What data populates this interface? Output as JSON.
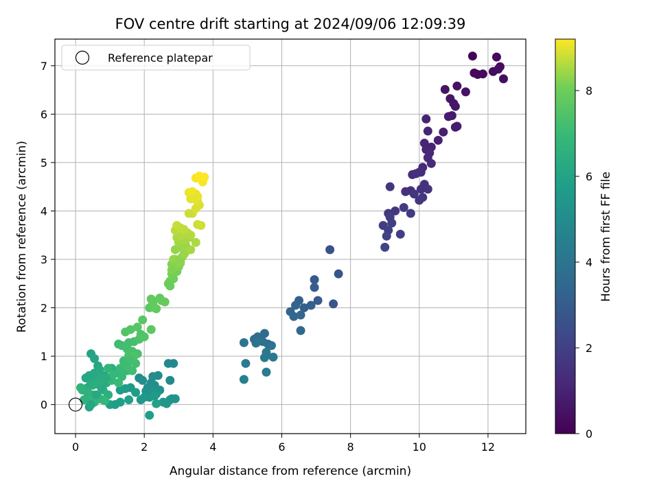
{
  "chart_data": {
    "type": "scatter",
    "title": "FOV centre drift starting at 2024/09/06 12:09:39",
    "xlabel": "Angular distance from reference (arcmin)",
    "ylabel": "Rotation from reference (arcmin)",
    "xlim": [
      -0.6,
      13.1
    ],
    "ylim": [
      -0.6,
      7.55
    ],
    "xticks": [
      0,
      2,
      4,
      6,
      8,
      10,
      12
    ],
    "yticks": [
      0,
      1,
      2,
      3,
      4,
      5,
      6,
      7
    ],
    "grid": true,
    "legend": {
      "placement": "top-left",
      "entries": [
        "Reference platepar"
      ]
    },
    "reference_point": {
      "x": 0,
      "y": 0,
      "label": "Reference platepar"
    },
    "colorbar": {
      "label": "Hours from first FF file",
      "colormap": "viridis",
      "range": [
        0,
        9.2
      ],
      "ticks": [
        0,
        2,
        4,
        6,
        8
      ]
    },
    "series": [
      {
        "x": [
          11.55,
          11.6,
          11.7,
          11.85,
          12.15,
          12.25,
          12.35,
          12.3,
          12.45,
          11.1,
          11.35,
          10.75,
          10.9,
          11.0,
          11.05,
          10.95
        ],
        "y": [
          7.2,
          6.85,
          6.82,
          6.83,
          6.88,
          7.18,
          6.98,
          6.93,
          6.73,
          6.58,
          6.46,
          6.51,
          6.32,
          6.22,
          6.16,
          5.97
        ],
        "hours": [
          0.1,
          0.2,
          0.2,
          0.25,
          0.3,
          0.3,
          0.35,
          0.4,
          0.4,
          0.5,
          0.5,
          0.55,
          0.6,
          0.6,
          0.65,
          0.7
        ]
      },
      {
        "x": [
          11.05,
          11.1,
          10.85,
          10.7,
          10.55,
          10.35,
          10.2,
          10.25,
          10.15,
          10.2,
          10.3,
          10.25,
          10.1,
          10.35,
          10.05
        ],
        "y": [
          5.73,
          5.75,
          5.95,
          5.63,
          5.46,
          5.32,
          5.9,
          5.65,
          5.4,
          5.27,
          5.2,
          5.1,
          4.9,
          4.98,
          4.8
        ],
        "hours": [
          0.75,
          0.8,
          0.8,
          0.9,
          0.95,
          1.0,
          1.0,
          1.05,
          1.1,
          1.1,
          1.15,
          1.2,
          1.2,
          1.25,
          1.3
        ]
      },
      {
        "x": [
          9.8,
          9.9,
          10.0,
          9.6,
          9.75,
          10.05,
          10.15,
          10.25,
          9.85,
          10.0,
          10.1,
          9.15,
          9.3,
          9.1,
          9.55,
          9.75,
          9.15,
          9.2,
          8.95,
          9.45,
          9.1,
          9.05,
          9.0
        ],
        "y": [
          4.75,
          4.77,
          4.8,
          4.4,
          4.42,
          4.45,
          4.55,
          4.45,
          4.35,
          4.22,
          4.28,
          4.5,
          4.0,
          3.95,
          4.07,
          3.95,
          3.87,
          3.75,
          3.7,
          3.52,
          3.6,
          3.48,
          3.25
        ],
        "hours": [
          1.3,
          1.35,
          1.4,
          1.4,
          1.45,
          1.5,
          1.5,
          1.55,
          1.6,
          1.6,
          1.65,
          1.7,
          1.7,
          1.75,
          1.8,
          1.8,
          1.85,
          1.9,
          1.95,
          2.0,
          2.0,
          2.05,
          2.1
        ]
      },
      {
        "x": [
          7.4,
          7.65,
          7.5,
          6.95,
          6.95,
          7.05,
          6.85,
          6.65,
          6.5,
          6.4,
          6.25,
          6.35,
          6.55,
          6.55
        ],
        "y": [
          3.2,
          2.7,
          2.08,
          2.58,
          2.42,
          2.15,
          2.05,
          2.0,
          2.15,
          2.05,
          1.92,
          1.82,
          1.85,
          1.53
        ],
        "hours": [
          2.6,
          2.7,
          2.8,
          2.9,
          3.0,
          3.0,
          3.1,
          3.15,
          3.2,
          3.3,
          3.3,
          3.4,
          3.45,
          3.5
        ]
      },
      {
        "x": [
          5.5,
          5.3,
          5.2,
          5.45,
          5.6,
          5.7,
          5.25,
          5.3,
          4.9,
          5.55,
          5.75,
          5.5,
          4.95,
          5.55,
          4.9
        ],
        "y": [
          1.47,
          1.4,
          1.35,
          1.3,
          1.25,
          1.22,
          1.27,
          1.3,
          1.28,
          1.08,
          0.98,
          0.97,
          0.85,
          0.67,
          0.52
        ],
        "hours": [
          3.6,
          3.65,
          3.7,
          3.8,
          3.85,
          3.9,
          3.9,
          4.0,
          4.05,
          4.1,
          4.2,
          4.25,
          4.3,
          4.4,
          4.5
        ]
      },
      {
        "x": [
          2.7,
          2.85,
          2.75,
          2.4,
          2.2,
          2.25,
          1.85,
          1.95,
          2.3,
          2.1,
          2.05,
          2.45,
          2.8,
          2.75,
          2.9,
          2.35,
          2.15,
          2.25,
          2.55,
          2.65,
          1.9,
          2.0,
          2.3,
          1.6,
          1.45,
          1.75,
          1.3,
          2.15,
          1.3,
          1.15,
          1.0,
          1.55,
          2.35
        ],
        "y": [
          0.85,
          0.85,
          0.5,
          0.6,
          0.45,
          0.58,
          0.55,
          0.5,
          0.4,
          0.35,
          0.28,
          0.3,
          0.12,
          0.1,
          0.12,
          0.22,
          0.15,
          0.25,
          0.05,
          0.02,
          0.1,
          0.15,
          0.18,
          0.35,
          0.33,
          0.25,
          0.3,
          -0.22,
          0.05,
          0.0,
          0.0,
          0.1,
          0.02
        ],
        "hours": [
          4.8,
          4.85,
          4.9,
          4.95,
          5.0,
          5.0,
          5.05,
          5.1,
          5.1,
          5.15,
          5.2,
          5.2,
          5.25,
          5.3,
          5.3,
          5.35,
          5.4,
          5.4,
          5.45,
          5.5,
          5.5,
          5.55,
          5.6,
          5.6,
          5.65,
          5.7,
          5.7,
          5.75,
          5.8,
          5.8,
          5.85,
          5.9,
          5.9
        ]
      },
      {
        "x": [
          0.45,
          0.55,
          0.65,
          0.3,
          0.4,
          0.55,
          0.7,
          0.85,
          0.45,
          0.6,
          0.75,
          0.9,
          0.35,
          0.5,
          0.65,
          0.8,
          0.95,
          0.2,
          0.35,
          0.5,
          0.65,
          0.8,
          0.45,
          0.55,
          0.7,
          0.85,
          1.05,
          1.2,
          1.35,
          1.5,
          0.4,
          0.45,
          0.6,
          0.75,
          0.9,
          1.05,
          0.25,
          0.15,
          0.95,
          1.1,
          1.25
        ],
        "y": [
          1.05,
          0.95,
          0.8,
          0.55,
          0.6,
          0.65,
          0.72,
          0.6,
          0.45,
          0.5,
          0.55,
          0.45,
          0.35,
          0.4,
          0.42,
          0.3,
          0.2,
          0.3,
          0.25,
          0.2,
          0.15,
          0.1,
          0.1,
          0.05,
          0.12,
          0.08,
          0.5,
          0.65,
          0.58,
          0.7,
          -0.05,
          0.0,
          0.2,
          0.35,
          0.55,
          0.75,
          0.1,
          0.35,
          0.75,
          0.62,
          0.45
        ],
        "hours": [
          6.0,
          6.05,
          6.1,
          6.1,
          6.15,
          6.2,
          6.2,
          6.25,
          6.3,
          6.3,
          6.35,
          6.4,
          6.4,
          6.45,
          6.5,
          6.5,
          6.55,
          6.6,
          6.6,
          6.65,
          6.7,
          6.7,
          6.75,
          6.8,
          6.8,
          6.85,
          6.9,
          6.9,
          6.95,
          7.0,
          6.0,
          6.1,
          6.2,
          6.3,
          6.4,
          6.5,
          6.6,
          6.7,
          6.8,
          6.9,
          7.0
        ]
      },
      {
        "x": [
          1.25,
          1.35,
          1.55,
          1.7,
          1.5,
          1.65,
          1.8,
          1.55,
          1.7,
          1.85,
          1.9,
          2.0,
          1.4,
          1.6,
          1.75,
          1.3,
          1.5,
          1.65,
          1.45,
          1.6,
          1.8,
          1.95,
          2.15,
          2.25,
          2.45,
          2.3,
          2.5,
          2.6,
          2.2,
          2.35,
          2.2
        ],
        "y": [
          1.25,
          1.22,
          1.28,
          1.3,
          1.15,
          1.1,
          1.05,
          1.02,
          1.0,
          1.35,
          1.45,
          1.4,
          0.9,
          0.92,
          0.85,
          0.75,
          0.8,
          0.7,
          1.5,
          1.55,
          1.6,
          1.75,
          2.0,
          2.1,
          2.2,
          2.0,
          2.15,
          2.12,
          2.18,
          1.98,
          1.55
        ],
        "hours": [
          7.1,
          7.15,
          7.2,
          7.2,
          7.25,
          7.3,
          7.3,
          7.35,
          7.4,
          7.4,
          7.45,
          7.5,
          7.1,
          7.2,
          7.25,
          7.0,
          7.1,
          7.15,
          7.5,
          7.55,
          7.6,
          7.65,
          7.7,
          7.75,
          7.8,
          7.75,
          7.85,
          7.9,
          7.8,
          7.85,
          7.7
        ]
      },
      {
        "x": [
          2.75,
          2.85,
          2.8,
          2.95,
          3.0,
          3.05,
          2.8,
          2.9,
          3.1,
          3.15,
          2.9,
          3.05,
          3.2,
          3.0,
          3.15,
          3.3,
          2.95,
          3.1,
          3.25,
          2.9,
          3.05,
          3.35,
          3.5,
          3.2,
          3.35,
          2.85,
          3.0,
          3.15,
          2.9,
          3.05,
          2.8,
          2.7,
          2.75
        ],
        "y": [
          2.55,
          2.6,
          2.7,
          2.75,
          2.85,
          2.95,
          2.9,
          3.0,
          3.05,
          3.1,
          3.2,
          3.25,
          3.3,
          3.35,
          3.4,
          3.45,
          3.45,
          3.5,
          3.55,
          3.6,
          3.65,
          3.5,
          3.35,
          3.15,
          3.2,
          3.0,
          2.95,
          3.1,
          2.85,
          2.92,
          2.78,
          2.5,
          2.45
        ],
        "hours": [
          8.0,
          8.05,
          8.1,
          8.1,
          8.15,
          8.2,
          8.2,
          8.25,
          8.3,
          8.3,
          8.35,
          8.4,
          8.4,
          8.45,
          8.5,
          8.5,
          8.55,
          8.6,
          8.6,
          8.65,
          8.7,
          8.6,
          8.55,
          8.45,
          8.5,
          8.35,
          8.3,
          8.4,
          8.25,
          8.3,
          8.2,
          8.0,
          7.95
        ]
      },
      {
        "x": [
          2.95,
          3.15,
          3.55,
          3.4,
          3.5,
          3.6,
          3.55,
          3.35,
          3.45,
          3.5,
          3.3,
          3.4,
          3.55,
          3.45,
          3.65,
          3.7,
          3.75,
          3.5,
          3.6,
          3.3
        ],
        "y": [
          3.7,
          3.62,
          3.72,
          3.95,
          4.05,
          4.12,
          4.2,
          4.25,
          4.3,
          4.35,
          4.38,
          4.4,
          4.3,
          4.25,
          3.7,
          4.6,
          4.7,
          4.68,
          4.72,
          3.95
        ],
        "hours": [
          8.75,
          8.7,
          8.8,
          8.85,
          8.9,
          8.9,
          8.95,
          9.0,
          9.0,
          9.05,
          9.05,
          9.1,
          9.05,
          9.0,
          8.85,
          9.15,
          9.2,
          9.15,
          9.2,
          8.8
        ]
      }
    ]
  }
}
